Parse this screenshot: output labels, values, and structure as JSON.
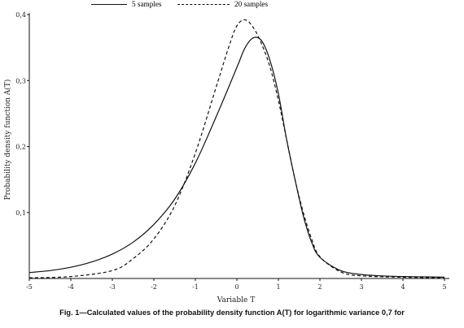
{
  "chart_data": {
    "type": "line",
    "ylabel": "Probability density function A(T)",
    "xlabel": "Variable T",
    "xlim": [
      -5,
      5
    ],
    "ylim": [
      0,
      0.4
    ],
    "x_ticks": [
      "-5",
      "-4",
      "-3",
      "-2",
      "-1",
      "0",
      "1",
      "2",
      "3",
      "4",
      "5"
    ],
    "y_ticks": [
      "0,1",
      "0,2",
      "0,3",
      "0,4"
    ],
    "caption_prefix": "Fig. 1",
    "caption": "—Calculated values of the probability density function A(T) for logarithmic variance 0,7 for",
    "grid": false,
    "series": [
      {
        "name": "5 samples",
        "style": "solid",
        "x": [
          -5,
          -4.5,
          -4,
          -3.5,
          -3,
          -2.5,
          -2,
          -1.5,
          -1,
          -0.5,
          0,
          0.2,
          0.4,
          0.6,
          0.8,
          1.0,
          1.2,
          1.4,
          1.6,
          1.8,
          2.0,
          2.5,
          3,
          3.5,
          4,
          5
        ],
        "y": [
          0.009,
          0.012,
          0.017,
          0.025,
          0.037,
          0.055,
          0.082,
          0.12,
          0.175,
          0.245,
          0.32,
          0.35,
          0.365,
          0.36,
          0.33,
          0.28,
          0.21,
          0.15,
          0.095,
          0.055,
          0.032,
          0.012,
          0.006,
          0.004,
          0.003,
          0.002
        ]
      },
      {
        "name": "20 samples",
        "style": "dashed",
        "x": [
          -5,
          -4,
          -3,
          -2.5,
          -2,
          -1.5,
          -1,
          -0.5,
          -0.2,
          0,
          0.2,
          0.4,
          0.6,
          0.8,
          1.0,
          1.2,
          1.4,
          1.6,
          1.8,
          2.0,
          2.5,
          3,
          4,
          5
        ],
        "y": [
          0.001,
          0.003,
          0.012,
          0.03,
          0.06,
          0.11,
          0.19,
          0.29,
          0.35,
          0.383,
          0.392,
          0.38,
          0.355,
          0.32,
          0.27,
          0.21,
          0.15,
          0.1,
          0.06,
          0.033,
          0.01,
          0.004,
          0.002,
          0.001
        ]
      }
    ]
  }
}
